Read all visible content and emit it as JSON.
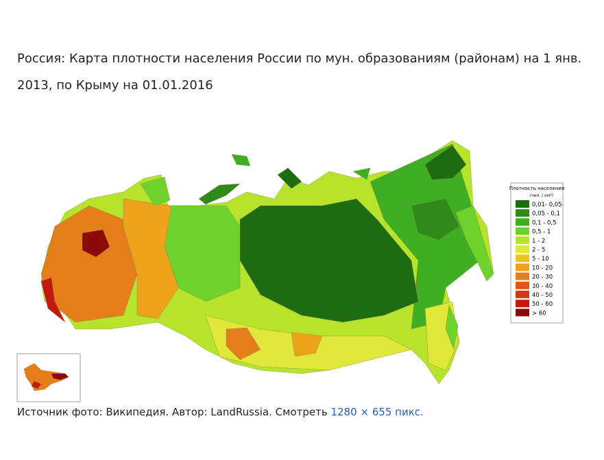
{
  "title": "Россия: Карта плотности населения России по мун. образованиям (районам) на 1 янв. 2013, по Крыму на 01.01.2016",
  "legend": {
    "title": "Плотность населения",
    "unit": "(чел. / км²)",
    "items": [
      {
        "label": "0,01- 0,05",
        "color": "#1e6b12"
      },
      {
        "label": "0,05 - 0,1",
        "color": "#2f8a1a"
      },
      {
        "label": "0,1 - 0,5",
        "color": "#3fae22"
      },
      {
        "label": "0,5 - 1",
        "color": "#6fd22c"
      },
      {
        "label": "1 - 2",
        "color": "#b6e42c"
      },
      {
        "label": "2 - 5",
        "color": "#dfe83a"
      },
      {
        "label": "5 - 10",
        "color": "#f0c21e"
      },
      {
        "label": "10 - 20",
        "color": "#eda21c"
      },
      {
        "label": "20 - 30",
        "color": "#e47e1a"
      },
      {
        "label": "30 - 40",
        "color": "#dc5a16"
      },
      {
        "label": "40 - 50",
        "color": "#d23a12"
      },
      {
        "label": "50 - 60",
        "color": "#c01a0e"
      },
      {
        "label": "> 60",
        "color": "#8c0a08"
      }
    ]
  },
  "caption": {
    "text": "Источник фото: Википедия. Автор: LandRussia. Смотреть",
    "link": "1280 × 655 пикс."
  }
}
